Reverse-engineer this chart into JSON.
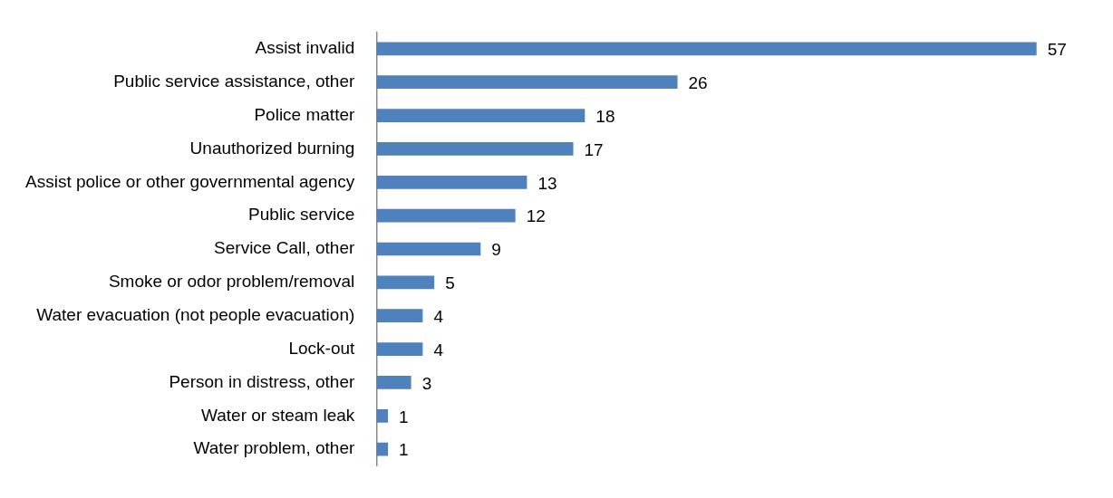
{
  "chart_data": {
    "type": "bar",
    "orientation": "horizontal",
    "data_labels": true,
    "grid": false,
    "legend": false,
    "tick_labels": "y",
    "categories": [
      "Assist invalid",
      "Public service assistance, other",
      "Police matter",
      "Unauthorized burning",
      "Assist police or other governmental agency",
      "Public service",
      "Service Call, other",
      "Smoke or odor problem/removal",
      "Water evacuation (not people evacuation)",
      "Lock-out",
      "Person in distress, other",
      "Water or steam leak",
      "Water problem, other"
    ],
    "series": [
      {
        "color": "#4f81bd",
        "values": [
          57,
          26,
          18,
          17,
          13,
          12,
          9,
          5,
          4,
          4,
          3,
          1,
          1
        ]
      }
    ]
  }
}
